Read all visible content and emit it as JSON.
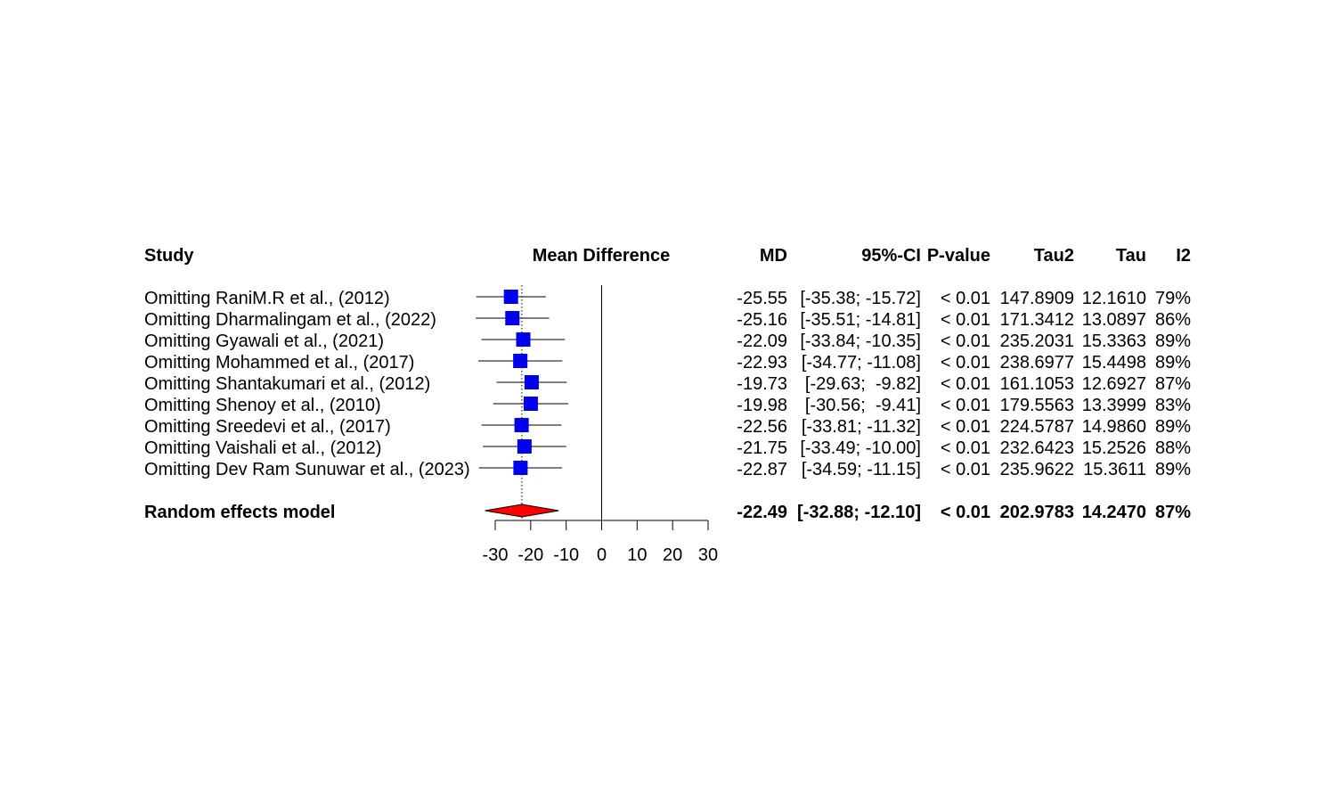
{
  "chart_data": {
    "type": "forest",
    "xlabel": "",
    "xlim": [
      -30,
      30
    ],
    "x_ticks": [
      -30,
      -20,
      -10,
      0,
      10,
      20,
      30
    ],
    "null_line": 0,
    "pooled_reference_line": -22.49,
    "columns": {
      "study": "Study",
      "plot": "Mean Difference",
      "md": "MD",
      "ci": "95%-CI",
      "p": "P-value",
      "tau2": "Tau2",
      "tau": "Tau",
      "i2": "I2"
    },
    "rows": [
      {
        "study": "Omitting RaniM.R et al., (2012)",
        "md": -25.55,
        "lower": -35.38,
        "upper": -15.72,
        "md_text": "-25.55",
        "ci_text": "[-35.38; -15.72]",
        "p_text": "< 0.01",
        "tau2": "147.8909",
        "tau": "12.1610",
        "i2": "79%"
      },
      {
        "study": "Omitting Dharmalingam et al., (2022)",
        "md": -25.16,
        "lower": -35.51,
        "upper": -14.81,
        "md_text": "-25.16",
        "ci_text": "[-35.51; -14.81]",
        "p_text": "< 0.01",
        "tau2": "171.3412",
        "tau": "13.0897",
        "i2": "86%"
      },
      {
        "study": "Omitting Gyawali et al., (2021)",
        "md": -22.09,
        "lower": -33.84,
        "upper": -10.35,
        "md_text": "-22.09",
        "ci_text": "[-33.84; -10.35]",
        "p_text": "< 0.01",
        "tau2": "235.2031",
        "tau": "15.3363",
        "i2": "89%"
      },
      {
        "study": "Omitting Mohammed et al., (2017)",
        "md": -22.93,
        "lower": -34.77,
        "upper": -11.08,
        "md_text": "-22.93",
        "ci_text": "[-34.77; -11.08]",
        "p_text": "< 0.01",
        "tau2": "238.6977",
        "tau": "15.4498",
        "i2": "89%"
      },
      {
        "study": "Omitting Shantakumari et al., (2012)",
        "md": -19.73,
        "lower": -29.63,
        "upper": -9.82,
        "md_text": "-19.73",
        "ci_text": "[-29.63;  -9.82]",
        "p_text": "< 0.01",
        "tau2": "161.1053",
        "tau": "12.6927",
        "i2": "87%"
      },
      {
        "study": "Omitting Shenoy et al., (2010)",
        "md": -19.98,
        "lower": -30.56,
        "upper": -9.41,
        "md_text": "-19.98",
        "ci_text": "[-30.56;  -9.41]",
        "p_text": "< 0.01",
        "tau2": "179.5563",
        "tau": "13.3999",
        "i2": "83%"
      },
      {
        "study": "Omitting Sreedevi et al., (2017)",
        "md": -22.56,
        "lower": -33.81,
        "upper": -11.32,
        "md_text": "-22.56",
        "ci_text": "[-33.81; -11.32]",
        "p_text": "< 0.01",
        "tau2": "224.5787",
        "tau": "14.9860",
        "i2": "89%"
      },
      {
        "study": "Omitting Vaishali et al., (2012)",
        "md": -21.75,
        "lower": -33.49,
        "upper": -10.0,
        "md_text": "-21.75",
        "ci_text": "[-33.49; -10.00]",
        "p_text": "< 0.01",
        "tau2": "232.6423",
        "tau": "15.2526",
        "i2": "88%"
      },
      {
        "study": "Omitting Dev Ram Sunuwar et al., (2023)",
        "md": -22.87,
        "lower": -34.59,
        "upper": -11.15,
        "md_text": "-22.87",
        "ci_text": "[-34.59; -11.15]",
        "p_text": "< 0.01",
        "tau2": "235.9622",
        "tau": "15.3611",
        "i2": "89%"
      }
    ],
    "summary": {
      "study": "Random effects model",
      "md": -22.49,
      "lower": -32.88,
      "upper": -12.1,
      "md_text": "-22.49",
      "ci_text": "[-32.88; -12.10]",
      "p_text": "< 0.01",
      "tau2": "202.9783",
      "tau": "14.2470",
      "i2": "87%"
    },
    "colors": {
      "square": "#0000ee",
      "diamond": "#ff0000",
      "line": "#000000"
    }
  }
}
